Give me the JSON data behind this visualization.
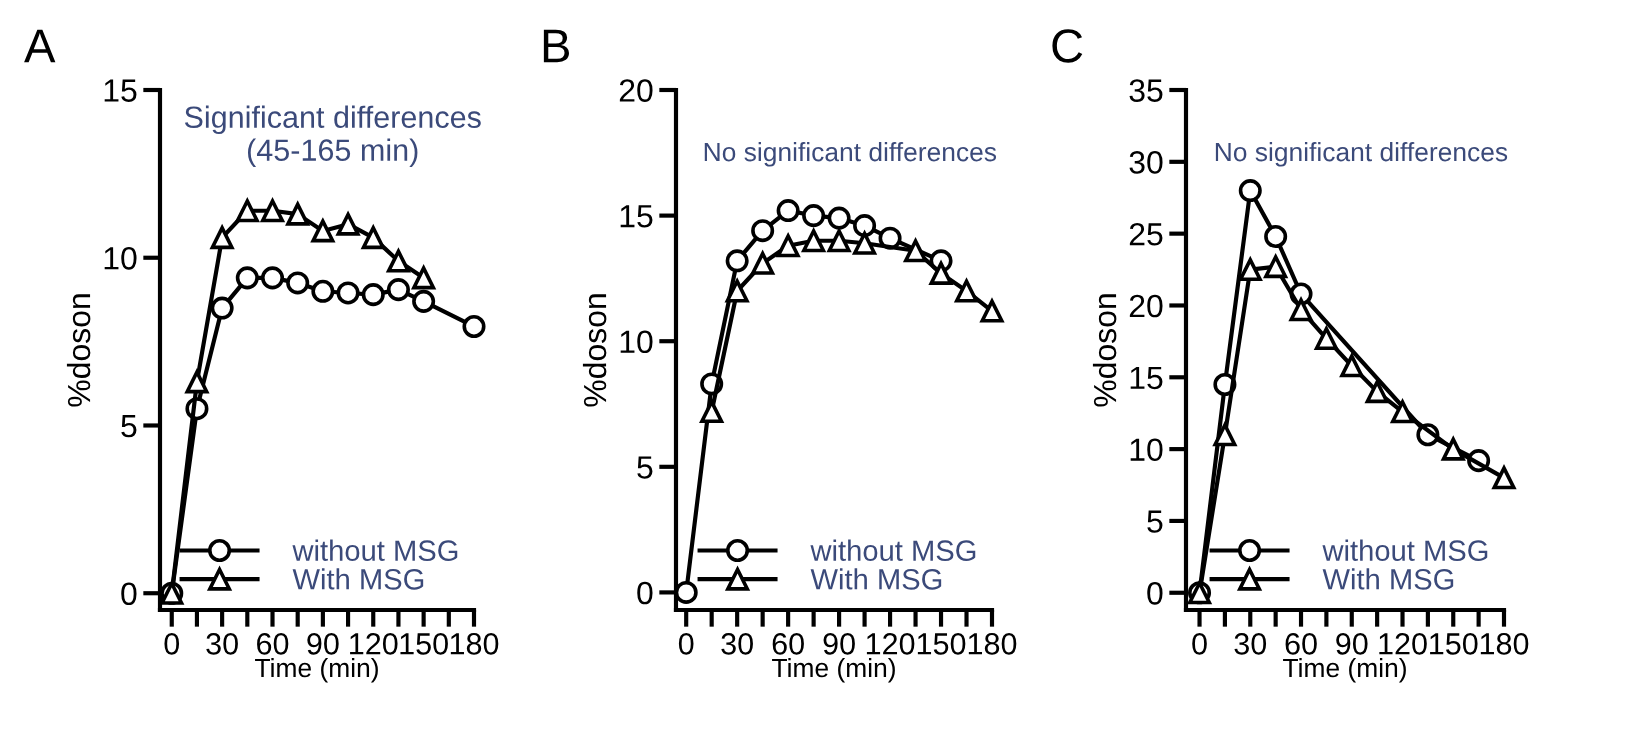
{
  "chart_data": [
    {
      "type": "line",
      "annotations": [
        "A",
        "Significant differences\n(45-165 min)"
      ],
      "xlabel": "Time (min)",
      "ylabel": "%doson",
      "xlim": [
        -7,
        180
      ],
      "ylim": [
        -0.5,
        15
      ],
      "yticks": [
        0,
        5,
        10,
        15
      ],
      "xticks": [
        0,
        {
          "value": 15,
          "label": null
        },
        30,
        {
          "value": 45,
          "label": null
        },
        60,
        {
          "value": 75,
          "label": null
        },
        90,
        {
          "value": 105,
          "label": null
        },
        120,
        {
          "value": 135,
          "label": null
        },
        150,
        {
          "value": 165,
          "label": null
        },
        180
      ],
      "legend": "bottom right",
      "grid": false,
      "series": [
        {
          "name": "without MSG",
          "color": "#000000",
          "marker": "circle",
          "x": [
            0,
            15,
            30,
            45,
            60,
            75,
            90,
            105,
            120,
            135,
            150,
            180
          ],
          "values": [
            0,
            5.5,
            8.5,
            9.4,
            9.4,
            9.25,
            9.0,
            8.95,
            8.9,
            9.05,
            8.7,
            7.95
          ]
        },
        {
          "name": "With MSG",
          "color": "#000000",
          "marker": "triangle",
          "x": [
            0,
            15,
            30,
            45,
            60,
            75,
            90,
            105,
            120,
            135,
            150
          ],
          "values": [
            0,
            6.3,
            10.6,
            11.4,
            11.4,
            11.3,
            10.8,
            11.0,
            10.6,
            9.9,
            9.4
          ]
        }
      ]
    },
    {
      "type": "line",
      "annotations": [
        "B",
        "No significant differences"
      ],
      "xlabel": "Time (min)",
      "ylabel": "%doson",
      "xlim": [
        -6,
        180
      ],
      "ylim": [
        -0.7,
        20
      ],
      "yticks": [
        0,
        5,
        10,
        15,
        20
      ],
      "xticks": [
        0,
        {
          "value": 15,
          "label": null
        },
        30,
        {
          "value": 45,
          "label": null
        },
        60,
        {
          "value": 75,
          "label": null
        },
        90,
        {
          "value": 105,
          "label": null
        },
        120,
        {
          "value": 135,
          "label": null
        },
        150,
        {
          "value": 165,
          "label": null
        },
        180
      ],
      "legend": "bottom right",
      "grid": false,
      "series": [
        {
          "name": "without MSG",
          "color": "#000000",
          "marker": "circle",
          "x": [
            0,
            15,
            30,
            45,
            60,
            75,
            90,
            105,
            120,
            150
          ],
          "values": [
            0,
            8.3,
            13.2,
            14.4,
            15.2,
            15.0,
            14.9,
            14.6,
            14.1,
            13.2
          ]
        },
        {
          "name": "With MSG",
          "color": "#000000",
          "marker": "triangle",
          "x": [
            15,
            30,
            45,
            60,
            75,
            90,
            105,
            135,
            150,
            165,
            180
          ],
          "values": [
            7.2,
            12.0,
            13.1,
            13.8,
            14.0,
            14.0,
            13.9,
            13.6,
            12.7,
            12.0,
            11.2
          ]
        }
      ]
    },
    {
      "type": "line",
      "annotations": [
        "C",
        "No significant differences"
      ],
      "xlabel": "Time (min)",
      "ylabel": "%doson",
      "xlim": [
        -8,
        180
      ],
      "ylim": [
        -1.2,
        35
      ],
      "yticks": [
        0,
        5,
        10,
        15,
        20,
        25,
        30,
        35
      ],
      "xticks": [
        0,
        {
          "value": 15,
          "label": null
        },
        30,
        {
          "value": 45,
          "label": null
        },
        60,
        {
          "value": 75,
          "label": null
        },
        90,
        {
          "value": 105,
          "label": null
        },
        120,
        {
          "value": 135,
          "label": null
        },
        150,
        {
          "value": 165,
          "label": null
        },
        180
      ],
      "legend": "bottom right",
      "grid": false,
      "series": [
        {
          "name": "without MSG",
          "color": "#000000",
          "marker": "circle",
          "x": [
            0,
            15,
            30,
            45,
            60,
            135,
            165
          ],
          "values": [
            0,
            14.5,
            28.0,
            24.8,
            20.8,
            11.0,
            9.2
          ]
        },
        {
          "name": "With MSG",
          "color": "#000000",
          "marker": "triangle",
          "x": [
            0,
            15,
            30,
            45,
            60,
            75,
            90,
            105,
            120,
            150,
            180
          ],
          "values": [
            0,
            11.0,
            22.5,
            22.7,
            19.7,
            17.7,
            15.8,
            14.0,
            12.6,
            10.0,
            8.0
          ]
        }
      ]
    }
  ]
}
